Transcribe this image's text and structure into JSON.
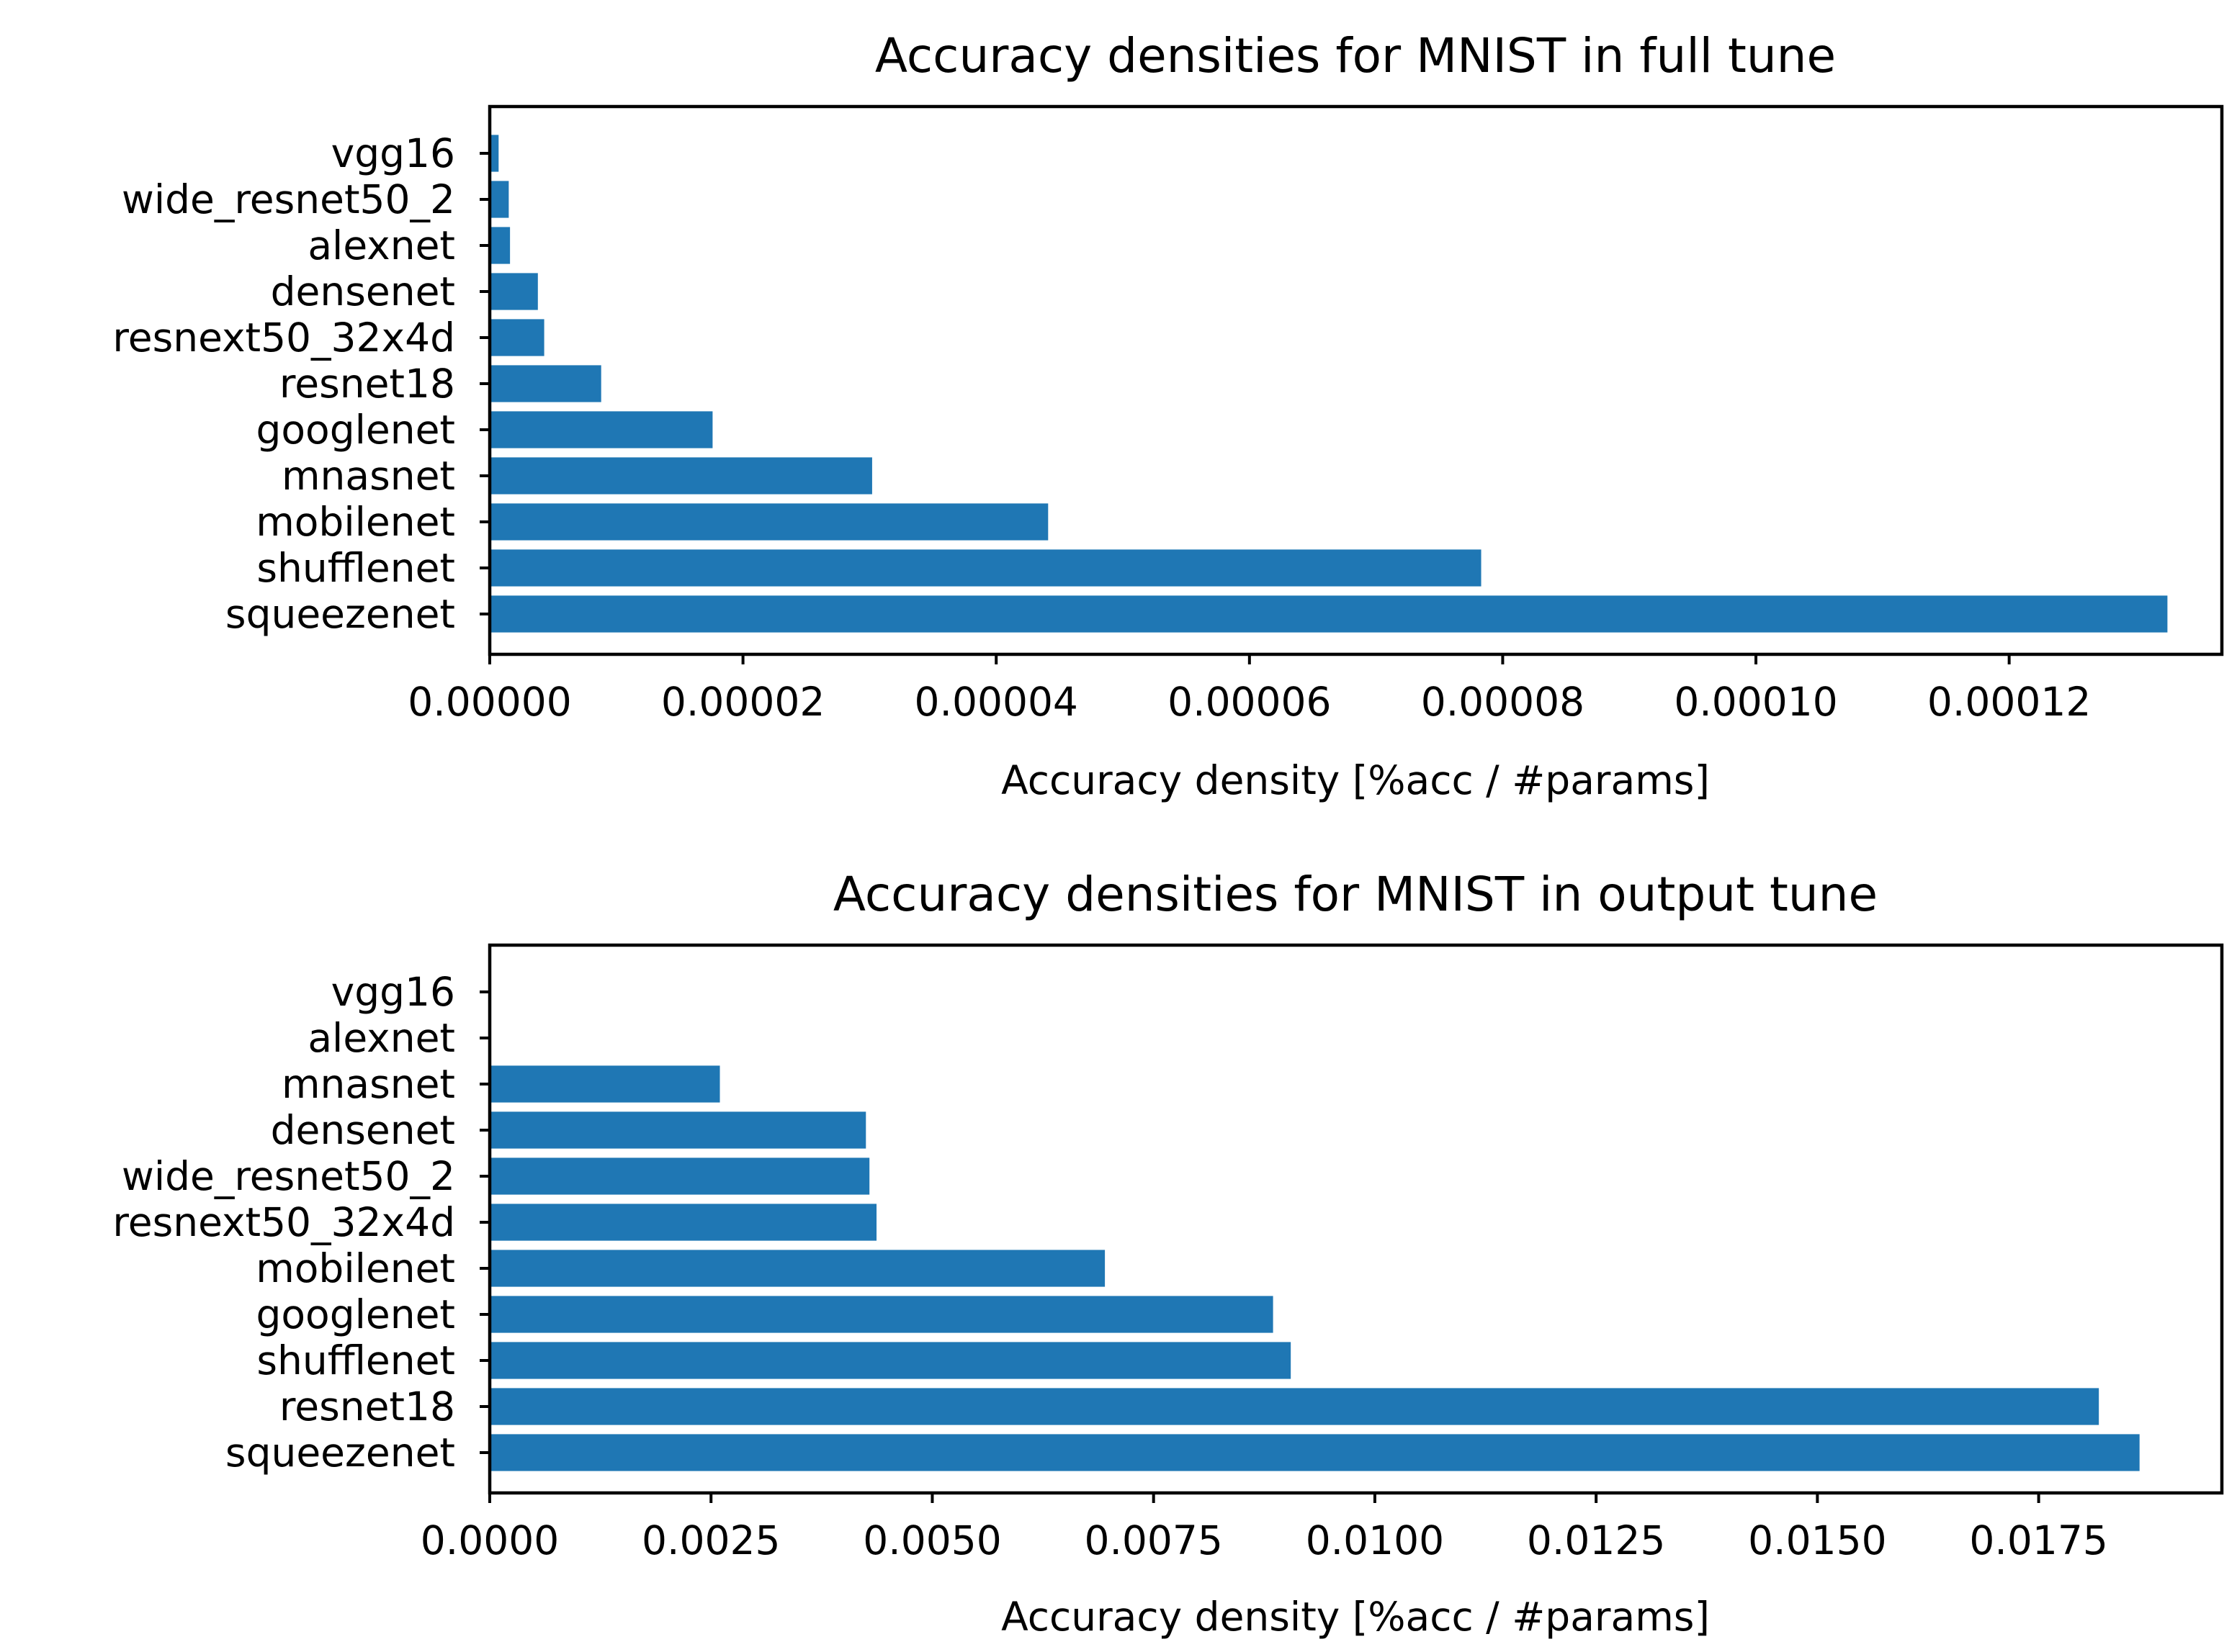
{
  "chart_data": [
    {
      "type": "bar",
      "orientation": "horizontal",
      "title": "Accuracy densities for MNIST in full tune",
      "xlabel": "Accuracy density [%acc / #params]",
      "ylabel": "",
      "categories": [
        "squeezenet",
        "shufflenet",
        "mobilenet",
        "mnasnet",
        "googlenet",
        "resnet18",
        "resnext50_32x4d",
        "densenet",
        "alexnet",
        "wide_resnet50_2",
        "vgg16"
      ],
      "values": [
        0.0001325,
        7.83e-05,
        4.41e-05,
        3.02e-05,
        1.76e-05,
        8.8e-06,
        4.3e-06,
        3.8e-06,
        1.6e-06,
        1.5e-06,
        7e-07
      ],
      "xlim": [
        0,
        0.0001368
      ],
      "xticks": [
        0,
        2e-05,
        4e-05,
        6e-05,
        8e-05,
        0.0001,
        0.00012
      ],
      "xtick_labels": [
        "0.00000",
        "0.00002",
        "0.00004",
        "0.00006",
        "0.00008",
        "0.00010",
        "0.00012"
      ],
      "grid": false,
      "color": "#1f77b4"
    },
    {
      "type": "bar",
      "orientation": "horizontal",
      "title": "Accuracy densities for MNIST in output tune",
      "xlabel": "Accuracy density [%acc / #params]",
      "ylabel": "",
      "categories": [
        "squeezenet",
        "resnet18",
        "shufflenet",
        "googlenet",
        "mobilenet",
        "resnext50_32x4d",
        "wide_resnet50_2",
        "densenet",
        "mnasnet",
        "alexnet",
        "vgg16"
      ],
      "values": [
        0.01864,
        0.01818,
        0.00905,
        0.00885,
        0.00695,
        0.00437,
        0.00429,
        0.00425,
        0.0026,
        0.0,
        0.0
      ],
      "xlim": [
        0,
        0.01957
      ],
      "xticks": [
        0,
        0.0025,
        0.005,
        0.0075,
        0.01,
        0.0125,
        0.015,
        0.0175
      ],
      "xtick_labels": [
        "0.0000",
        "0.0025",
        "0.0050",
        "0.0075",
        "0.0100",
        "0.0125",
        "0.0150",
        "0.0175"
      ],
      "grid": false,
      "color": "#1f77b4"
    }
  ]
}
